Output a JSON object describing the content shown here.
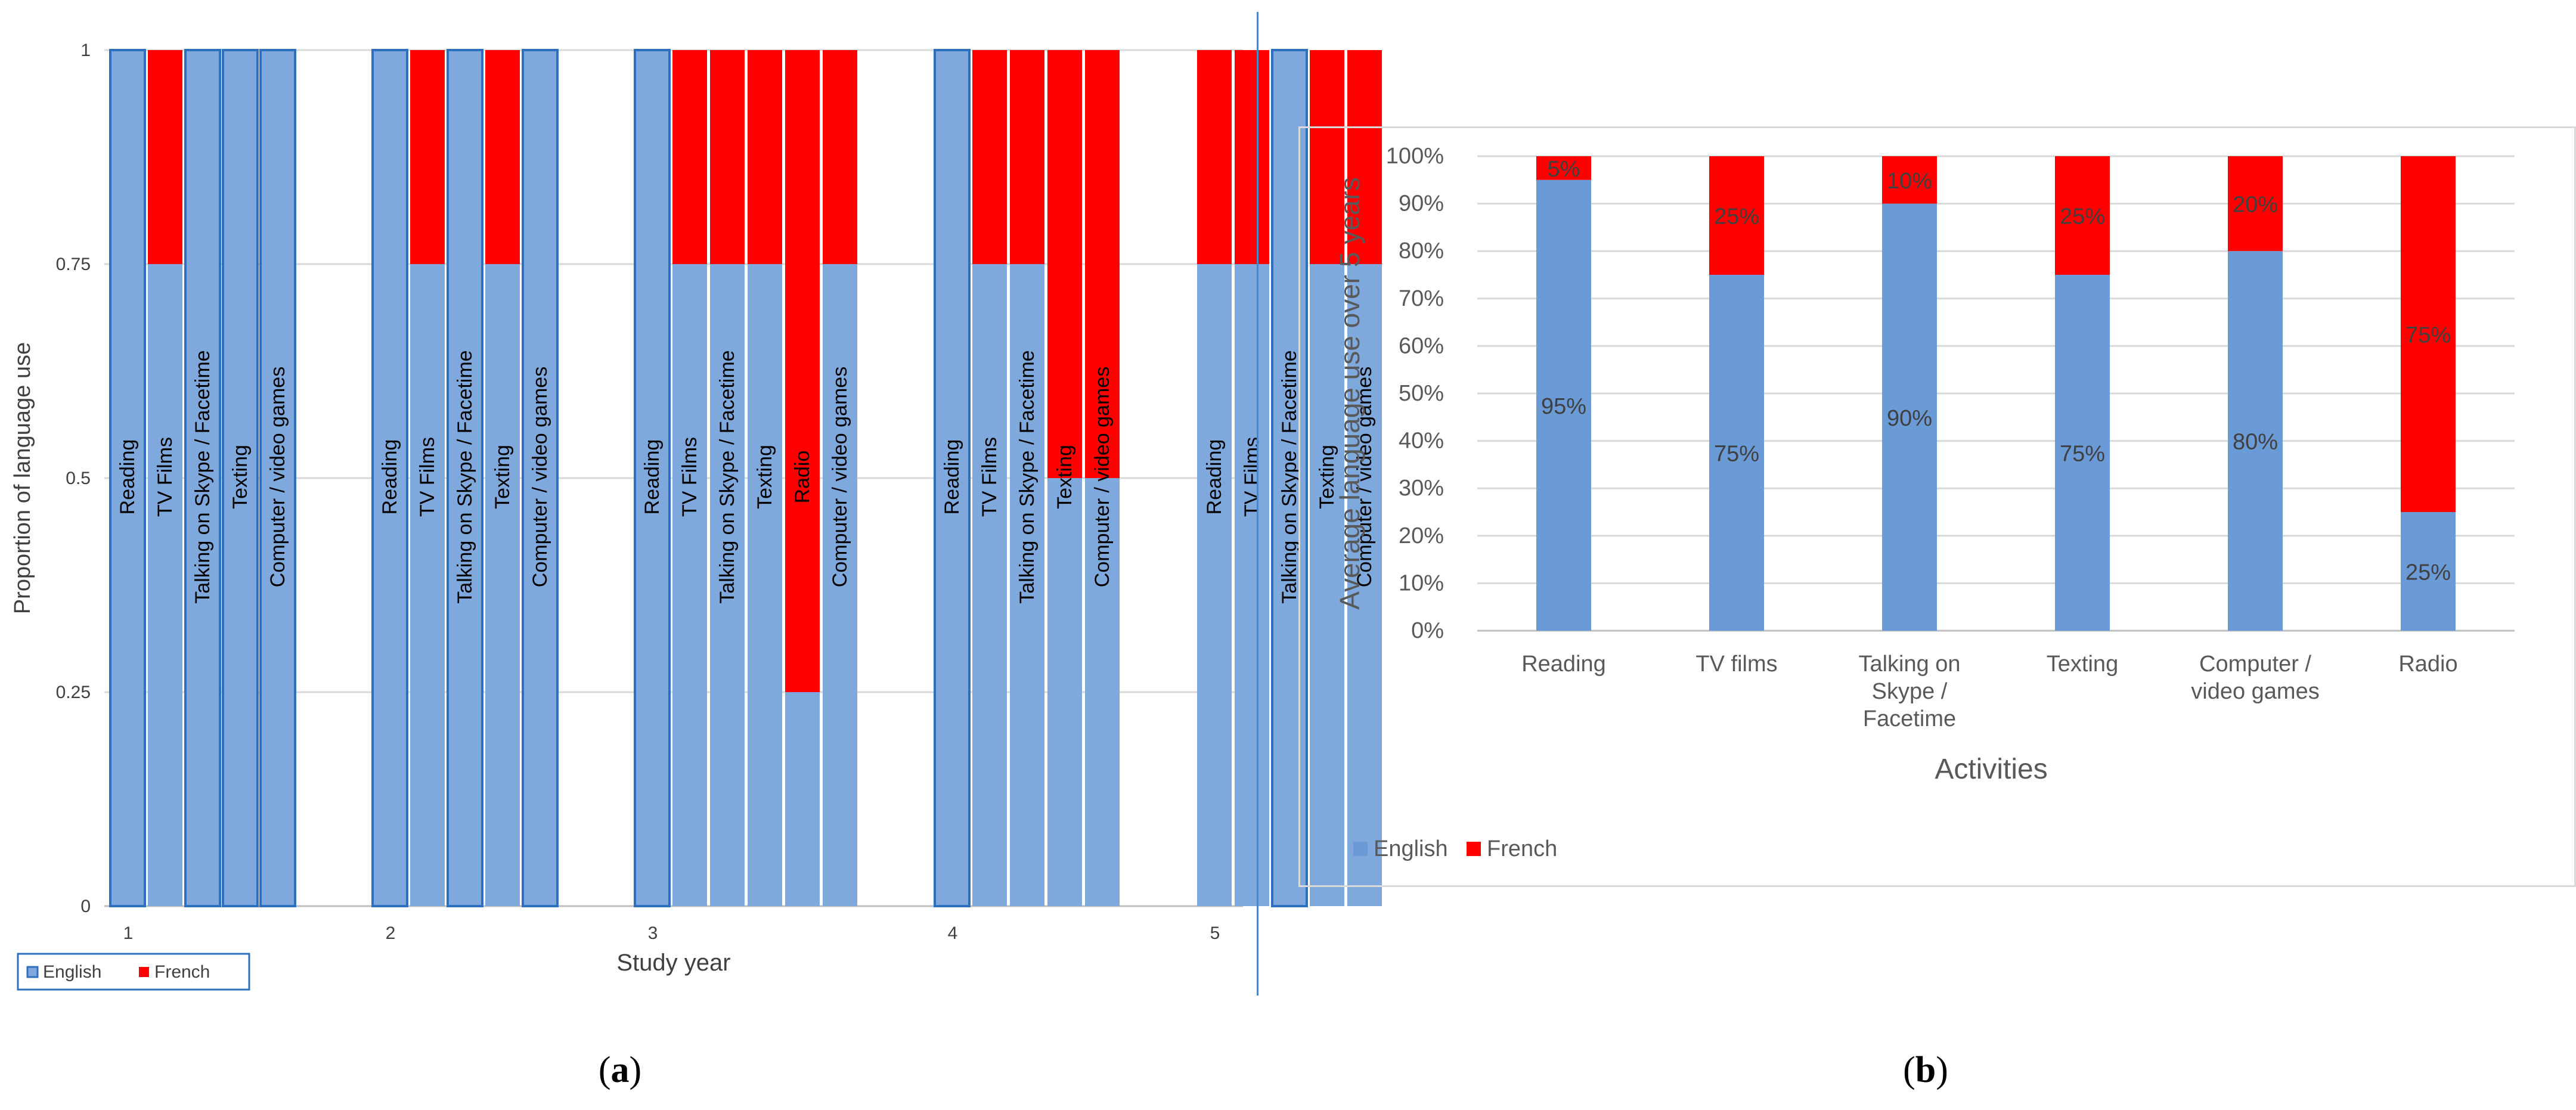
{
  "captions": {
    "a": "a",
    "b": "b"
  },
  "legend": {
    "english": "English",
    "french": "French"
  },
  "colors": {
    "english": "#7fa8dc",
    "english_b": "#6b9bd6",
    "french": "#ff0000",
    "grid": "#d9d9d9",
    "english_border": "#2e6fc0"
  },
  "chart_data": [
    {
      "type": "bar",
      "stacked": true,
      "panel": "a",
      "title": "",
      "xlabel": "Study year",
      "ylabel": "Proportion of language use",
      "ylim": [
        0,
        1
      ],
      "yticks": [
        "0",
        "0.25",
        "0.5",
        "0.75",
        "1"
      ],
      "legend_position": "bottom-left",
      "groups": [
        {
          "label": "1",
          "bars": [
            {
              "label": "Reading",
              "english": 1,
              "french": 0
            },
            {
              "label": "TV Films",
              "english": 0.75,
              "french": 0.25
            },
            {
              "label": "Talking on Skype / Facetime",
              "english": 1,
              "french": 0
            },
            {
              "label": "Texting",
              "english": 1,
              "french": 0
            },
            {
              "label": "Computer / video games",
              "english": 1,
              "french": 0
            }
          ]
        },
        {
          "label": "2",
          "bars": [
            {
              "label": "Reading",
              "english": 1,
              "french": 0
            },
            {
              "label": "TV Films",
              "english": 0.75,
              "french": 0.25
            },
            {
              "label": "Talking  on Skype / Facetime",
              "english": 1,
              "french": 0
            },
            {
              "label": "Texting",
              "english": 0.75,
              "french": 0.25
            },
            {
              "label": "Computer / video games",
              "english": 1,
              "french": 0
            }
          ]
        },
        {
          "label": "3",
          "bars": [
            {
              "label": "Reading",
              "english": 1,
              "french": 0
            },
            {
              "label": "TV Films",
              "english": 0.75,
              "french": 0.25
            },
            {
              "label": "Talking on Skype / Facetime",
              "english": 0.75,
              "french": 0.25
            },
            {
              "label": "Texting",
              "english": 0.75,
              "french": 0.25
            },
            {
              "label": "Radio",
              "english": 0.25,
              "french": 0.75
            },
            {
              "label": "Computer / video games",
              "english": 0.75,
              "french": 0.25
            }
          ]
        },
        {
          "label": "4",
          "bars": [
            {
              "label": "Reading",
              "english": 1,
              "french": 0
            },
            {
              "label": "TV Films",
              "english": 0.75,
              "french": 0.25
            },
            {
              "label": "Talking on Skype / Facetime",
              "english": 0.75,
              "french": 0.25
            },
            {
              "label": "Texting",
              "english": 0.5,
              "french": 0.5
            },
            {
              "label": "Computer / video games",
              "english": 0.5,
              "french": 0.5
            }
          ]
        },
        {
          "label": "5",
          "bars": [
            {
              "label": "Reading",
              "english": 0.75,
              "french": 0.25
            },
            {
              "label": "TV Films",
              "english": 0.75,
              "french": 0.25
            },
            {
              "label": "Talking on Skype / Facetime",
              "english": 1,
              "french": 0
            },
            {
              "label": "Texting",
              "english": 0.75,
              "french": 0.25
            },
            {
              "label": "Computer / video games",
              "english": 0.75,
              "french": 0.25
            }
          ]
        }
      ]
    },
    {
      "type": "bar",
      "stacked": true,
      "panel": "b",
      "title": "",
      "xlabel": "Activities",
      "ylabel": "Average language use over 5 years",
      "ylim": [
        0,
        100
      ],
      "yticks": [
        "0%",
        "10%",
        "20%",
        "30%",
        "40%",
        "50%",
        "60%",
        "70%",
        "80%",
        "90%",
        "100%"
      ],
      "legend_position": "bottom-left",
      "categories": [
        "Reading",
        "TV films",
        "Talking on Skype / Facetime",
        "Texting",
        "Computer / video games",
        "Radio"
      ],
      "category_lines": [
        [
          "Reading"
        ],
        [
          "TV films"
        ],
        [
          "Talking on",
          "Skype /",
          "Facetime"
        ],
        [
          "Texting"
        ],
        [
          "Computer /",
          "video games"
        ],
        [
          "Radio"
        ]
      ],
      "series": [
        {
          "name": "English",
          "values": [
            95,
            75,
            90,
            75,
            80,
            25
          ],
          "labels": [
            "95%",
            "75%",
            "90%",
            "75%",
            "80%",
            "25%"
          ]
        },
        {
          "name": "French",
          "values": [
            5,
            25,
            10,
            25,
            20,
            75
          ],
          "labels": [
            "5%",
            "25%",
            "10%",
            "25%",
            "20%",
            "75%"
          ]
        }
      ]
    }
  ]
}
